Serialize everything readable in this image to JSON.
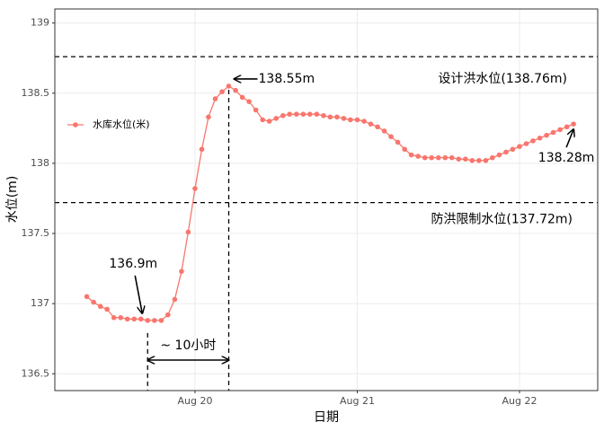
{
  "chart_data": {
    "type": "line",
    "xlabel": "日期",
    "ylabel": "水位(m)",
    "x": [
      19.333,
      19.375,
      19.417,
      19.458,
      19.5,
      19.542,
      19.583,
      19.625,
      19.667,
      19.708,
      19.75,
      19.792,
      19.833,
      19.875,
      19.917,
      19.958,
      20,
      20.042,
      20.083,
      20.125,
      20.167,
      20.208,
      20.25,
      20.292,
      20.333,
      20.375,
      20.417,
      20.458,
      20.5,
      20.542,
      20.583,
      20.625,
      20.667,
      20.708,
      20.75,
      20.792,
      20.833,
      20.875,
      20.917,
      20.958,
      21,
      21.042,
      21.083,
      21.125,
      21.167,
      21.208,
      21.25,
      21.292,
      21.333,
      21.375,
      21.417,
      21.458,
      21.5,
      21.542,
      21.583,
      21.625,
      21.667,
      21.708,
      21.75,
      21.792,
      21.833,
      21.875,
      21.917,
      21.958,
      22,
      22.042,
      22.083,
      22.125,
      22.167,
      22.208,
      22.25,
      22.292,
      22.333
    ],
    "series": [
      {
        "name": "水库水位(米)",
        "color": "#f8766d",
        "values": [
          137.05,
          137.01,
          136.98,
          136.96,
          136.9,
          136.9,
          136.89,
          136.89,
          136.89,
          136.88,
          136.88,
          136.88,
          136.92,
          137.03,
          137.23,
          137.51,
          137.82,
          138.1,
          138.33,
          138.46,
          138.51,
          138.55,
          138.52,
          138.47,
          138.44,
          138.38,
          138.31,
          138.3,
          138.32,
          138.34,
          138.35,
          138.35,
          138.35,
          138.35,
          138.35,
          138.34,
          138.33,
          138.33,
          138.32,
          138.31,
          138.31,
          138.3,
          138.28,
          138.26,
          138.23,
          138.19,
          138.15,
          138.1,
          138.06,
          138.05,
          138.04,
          138.04,
          138.04,
          138.04,
          138.04,
          138.03,
          138.03,
          138.02,
          138.02,
          138.02,
          138.04,
          138.06,
          138.08,
          138.1,
          138.12,
          138.14,
          138.16,
          138.18,
          138.2,
          138.22,
          138.24,
          138.26,
          138.28
        ]
      }
    ],
    "xlim": [
      19.136,
      22.482
    ],
    "xticks": [
      {
        "value": 20,
        "label": "Aug 20"
      },
      {
        "value": 21,
        "label": "Aug 21"
      },
      {
        "value": 22,
        "label": "Aug 22"
      }
    ],
    "ylim": [
      136.38,
      139.1
    ],
    "yticks": [
      136.5,
      137.0,
      137.5,
      138.0,
      138.5,
      139.0
    ],
    "grid": true,
    "legend": "left",
    "reference_lines": [
      {
        "value": 138.76,
        "label": "设计洪水位(138.76m)"
      },
      {
        "value": 137.72,
        "label": "防洪限制水位(137.72m)"
      }
    ],
    "point_labels": {
      "peak": "138.55m",
      "min": "136.9m",
      "last": "138.28m"
    },
    "interval_label": "~ 10小时"
  }
}
